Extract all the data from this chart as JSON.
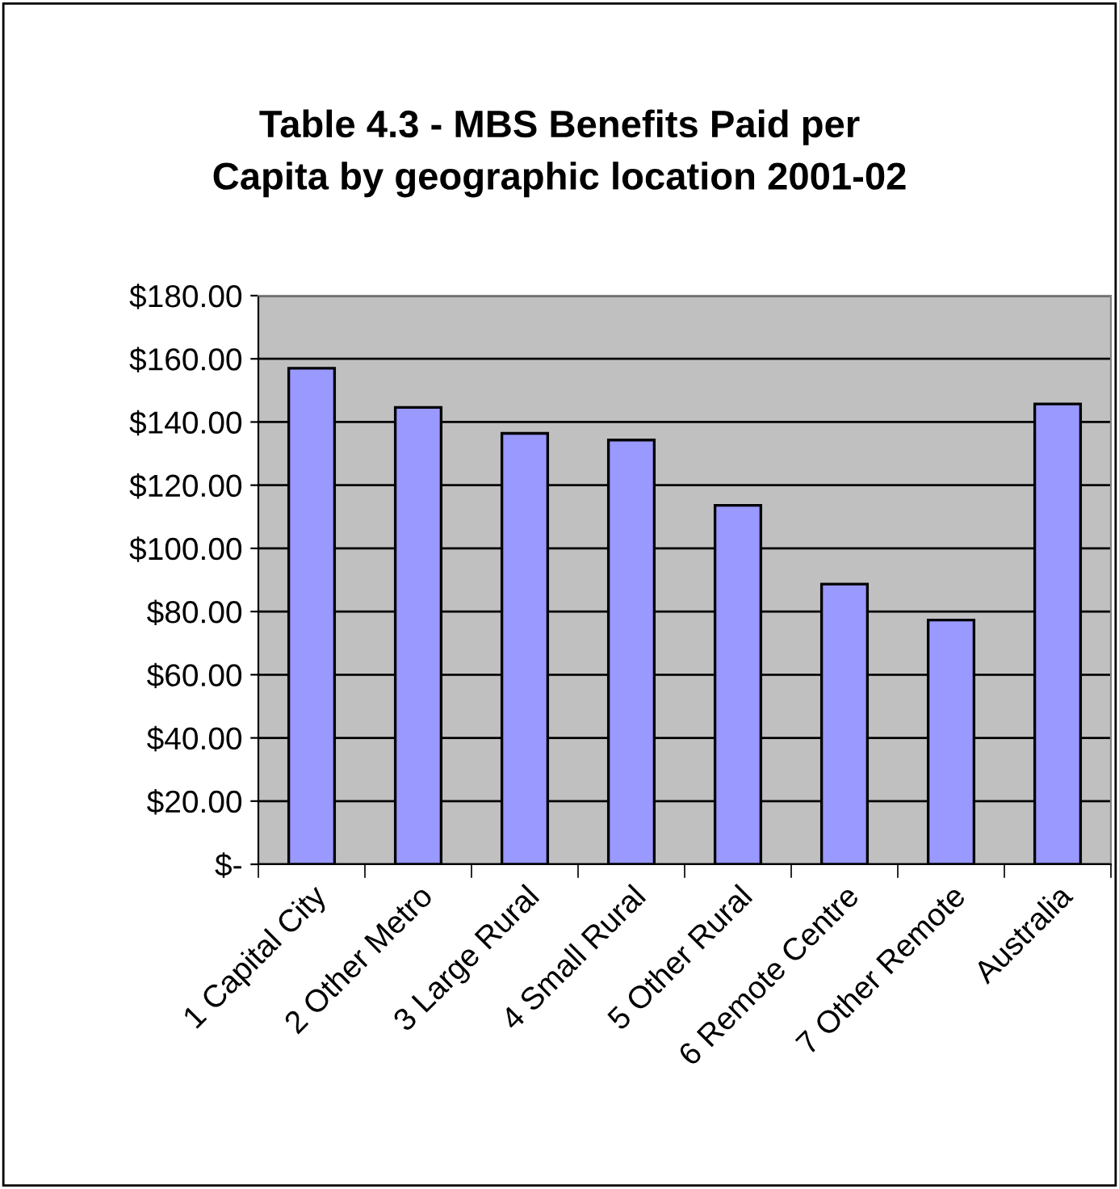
{
  "chart_data": {
    "type": "bar",
    "title": "Table 4.3 - MBS Benefits Paid per\nCapita by geographic location 2001-02",
    "categories": [
      "1 Capital City",
      "2 Other Metro",
      "3 Large Rural",
      "4 Small Rural",
      "5 Other Rural",
      "6 Remote Centre",
      "7 Other Remote",
      "Australia"
    ],
    "values": [
      157.0,
      144.6,
      136.4,
      134.3,
      113.6,
      88.7,
      77.3,
      145.7
    ],
    "color": "#9999ff",
    "ylim": [
      0,
      180
    ],
    "yticks": [
      {
        "value": 0,
        "label": "$-"
      },
      {
        "value": 20,
        "label": "$20.00"
      },
      {
        "value": 40,
        "label": "$40.00"
      },
      {
        "value": 60,
        "label": "$60.00"
      },
      {
        "value": 80,
        "label": "$80.00"
      },
      {
        "value": 100,
        "label": "$100.00"
      },
      {
        "value": 120,
        "label": "$120.00"
      },
      {
        "value": 140,
        "label": "$140.00"
      },
      {
        "value": 160,
        "label": "$160.00"
      },
      {
        "value": 180,
        "label": "$180.00"
      }
    ],
    "grid": "y",
    "legend": false
  }
}
